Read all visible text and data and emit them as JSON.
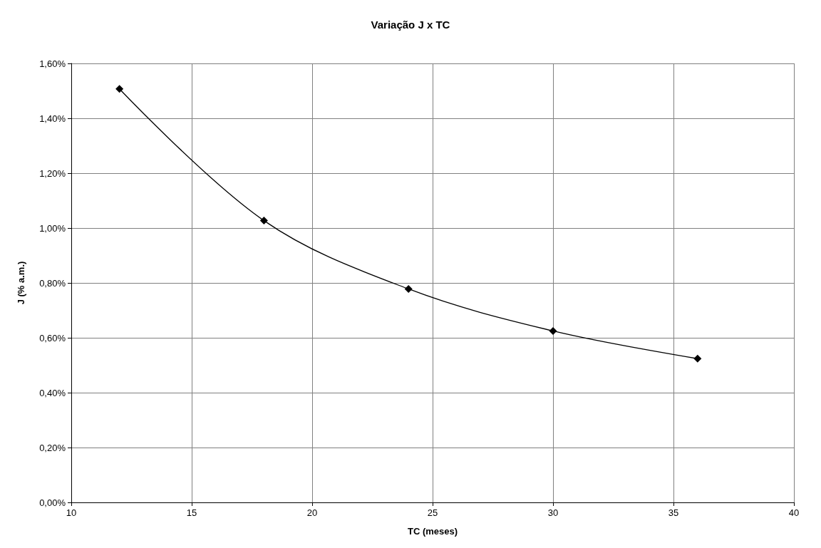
{
  "chart_data": {
    "type": "line",
    "title": "Variação J x TC",
    "xlabel": "TC (meses)",
    "ylabel": "J (% a.m.)",
    "x": [
      12,
      18,
      24,
      30,
      36
    ],
    "series": [
      {
        "color": "#000000",
        "values": [
          1.507,
          1.027,
          0.778,
          0.625,
          0.524
        ]
      }
    ],
    "xlim": [
      10,
      40
    ],
    "xticks": [
      10,
      15,
      20,
      25,
      30,
      35,
      40
    ],
    "ylim": [
      0,
      1.6
    ],
    "yticks": [
      {
        "value": 0,
        "label": "0,00%"
      },
      {
        "value": 0.2,
        "label": "0,20%"
      },
      {
        "value": 0.4,
        "label": "0,40%"
      },
      {
        "value": 0.6,
        "label": "0,60%"
      },
      {
        "value": 0.8,
        "label": "0,80%"
      },
      {
        "value": 1.0,
        "label": "1,00%"
      },
      {
        "value": 1.2,
        "label": "1,20%"
      },
      {
        "value": 1.4,
        "label": "1,40%"
      },
      {
        "value": 1.6,
        "label": "1,60%"
      }
    ],
    "grid": true,
    "marker": "diamond",
    "line_style": "solid"
  }
}
